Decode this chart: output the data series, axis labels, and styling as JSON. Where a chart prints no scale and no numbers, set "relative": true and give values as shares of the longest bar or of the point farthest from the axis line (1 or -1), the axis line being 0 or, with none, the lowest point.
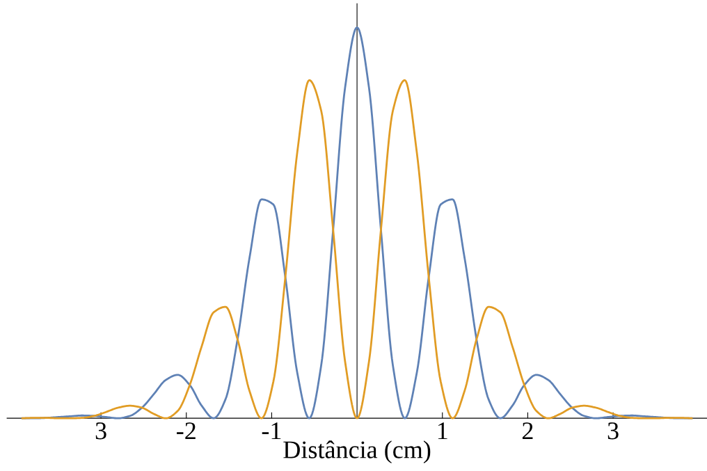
{
  "chart_data": {
    "type": "line",
    "xlabel": "Distância (cm)",
    "relative": true,
    "x": [
      -3.92,
      -3.78,
      -3.64,
      -3.5,
      -3.36,
      -3.22,
      -3.08,
      -2.94,
      -2.8,
      -2.66,
      -2.52,
      -2.38,
      -2.24,
      -2.1,
      -1.96,
      -1.82,
      -1.68,
      -1.54,
      -1.4,
      -1.26,
      -1.12,
      -0.98,
      -0.84,
      -0.7,
      -0.56,
      -0.42,
      -0.28,
      -0.14,
      0,
      0.14,
      0.28,
      0.42,
      0.56,
      0.7,
      0.84,
      0.98,
      1.12,
      1.26,
      1.4,
      1.54,
      1.68,
      1.82,
      1.96,
      2.1,
      2.24,
      2.38,
      2.52,
      2.66,
      2.8,
      2.94,
      3.08,
      3.22,
      3.36,
      3.5,
      3.64,
      3.78,
      3.92
    ],
    "series": [
      {
        "color": "#5e81b5",
        "values": [
          0,
          0,
          0.001,
          0.003,
          0.005,
          0.007,
          0.006,
          0.003,
          0,
          0.006,
          0.027,
          0.062,
          0.098,
          0.111,
          0.085,
          0.032,
          0,
          0.049,
          0.202,
          0.41,
          0.56,
          0.547,
          0.361,
          0.116,
          0,
          0.135,
          0.482,
          0.846,
          1,
          0.846,
          0.482,
          0.135,
          0,
          0.116,
          0.361,
          0.547,
          0.56,
          0.41,
          0.202,
          0.049,
          0,
          0.032,
          0.085,
          0.111,
          0.098,
          0.062,
          0.027,
          0.006,
          0,
          0.003,
          0.006,
          0.007,
          0.005,
          0.003,
          0.001,
          0,
          0
        ]
      },
      {
        "color": "#e19c24",
        "values": [
          0,
          0.001,
          0.001,
          0,
          0,
          0.001,
          0.006,
          0.016,
          0.027,
          0.032,
          0.027,
          0.011,
          0,
          0.019,
          0.085,
          0.184,
          0.271,
          0.285,
          0.202,
          0.07,
          0,
          0.094,
          0.361,
          0.681,
          0.865,
          0.787,
          0.482,
          0.145,
          0,
          0.145,
          0.482,
          0.787,
          0.865,
          0.681,
          0.361,
          0.094,
          0,
          0.07,
          0.202,
          0.285,
          0.271,
          0.184,
          0.085,
          0.019,
          0,
          0.011,
          0.027,
          0.032,
          0.027,
          0.016,
          0.006,
          0.001,
          0,
          0,
          0.001,
          0.001,
          0
        ]
      }
    ],
    "xlim": [
      -4.1,
      4.1
    ],
    "xticks": [
      {
        "value": -3,
        "label": "3"
      },
      -2,
      -1,
      1,
      2,
      3
    ],
    "tick_labels": "x",
    "grid": false,
    "legend": false,
    "marker": "none",
    "line_style": "solid"
  }
}
